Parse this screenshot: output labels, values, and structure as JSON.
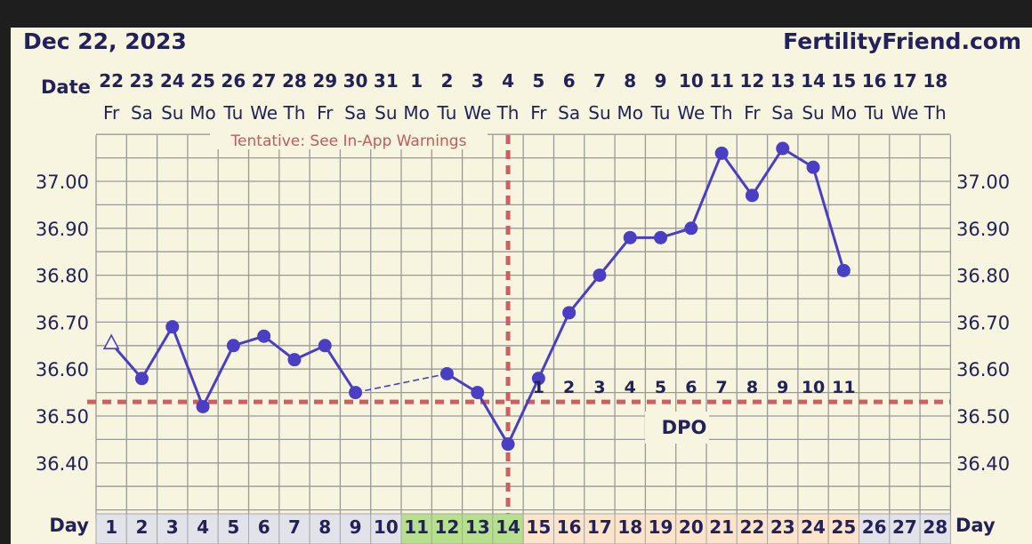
{
  "header": {
    "date": "Dec 22, 2023",
    "site": "FertilityFriend.com"
  },
  "labels": {
    "date_row": "Date",
    "day_row": "Day",
    "warning": "Tentative: See In-App Warnings",
    "dpo": "DPO"
  },
  "colors": {
    "line": "#4a3fc4",
    "coverline": "#cc5f5f",
    "grid": "#9a9a9a",
    "text": "#23215a",
    "day_default": "#e2e2ea",
    "day_fertile": "#b6e08e",
    "day_luteal": "#fbe4c9"
  },
  "chart_data": {
    "type": "line",
    "dates": [
      "22",
      "23",
      "24",
      "25",
      "26",
      "27",
      "28",
      "29",
      "30",
      "31",
      "1",
      "2",
      "3",
      "4",
      "5",
      "6",
      "7",
      "8",
      "9",
      "10",
      "11",
      "12",
      "13",
      "14",
      "15",
      "16",
      "17",
      "18"
    ],
    "weekdays": [
      "Fr",
      "Sa",
      "Su",
      "Mo",
      "Tu",
      "We",
      "Th",
      "Fr",
      "Sa",
      "Su",
      "Mo",
      "Tu",
      "We",
      "Th",
      "Fr",
      "Sa",
      "Su",
      "Mo",
      "Tu",
      "We",
      "Th",
      "Fr",
      "Sa",
      "Su",
      "Mo",
      "Tu",
      "We",
      "Th"
    ],
    "cycle_days": [
      1,
      2,
      3,
      4,
      5,
      6,
      7,
      8,
      9,
      10,
      11,
      12,
      13,
      14,
      15,
      16,
      17,
      18,
      19,
      20,
      21,
      22,
      23,
      24,
      25,
      26,
      27,
      28
    ],
    "day_phase": [
      "default",
      "default",
      "default",
      "default",
      "default",
      "default",
      "default",
      "default",
      "default",
      "default",
      "fertile",
      "fertile",
      "fertile",
      "fertile",
      "luteal",
      "luteal",
      "luteal",
      "luteal",
      "luteal",
      "luteal",
      "luteal",
      "luteal",
      "luteal",
      "luteal",
      "luteal",
      "default",
      "default",
      "default"
    ],
    "temperatures": [
      36.655,
      36.58,
      36.69,
      36.52,
      36.65,
      36.67,
      36.62,
      36.65,
      36.55,
      null,
      null,
      36.59,
      36.55,
      36.44,
      36.58,
      36.72,
      36.8,
      36.88,
      36.88,
      36.9,
      37.06,
      36.97,
      37.07,
      37.03,
      36.81,
      null,
      null,
      null
    ],
    "first_point_marker": "triangle",
    "coverline": 36.53,
    "ovulation_day": 14,
    "dpo_labels": [
      "1",
      "2",
      "3",
      "4",
      "5",
      "6",
      "7",
      "8",
      "9",
      "10",
      "11"
    ],
    "y_ticks": [
      "37.00",
      "36.90",
      "36.80",
      "36.70",
      "36.60",
      "36.50",
      "36.40"
    ],
    "ylim": [
      36.3,
      37.1
    ],
    "grid": true
  }
}
